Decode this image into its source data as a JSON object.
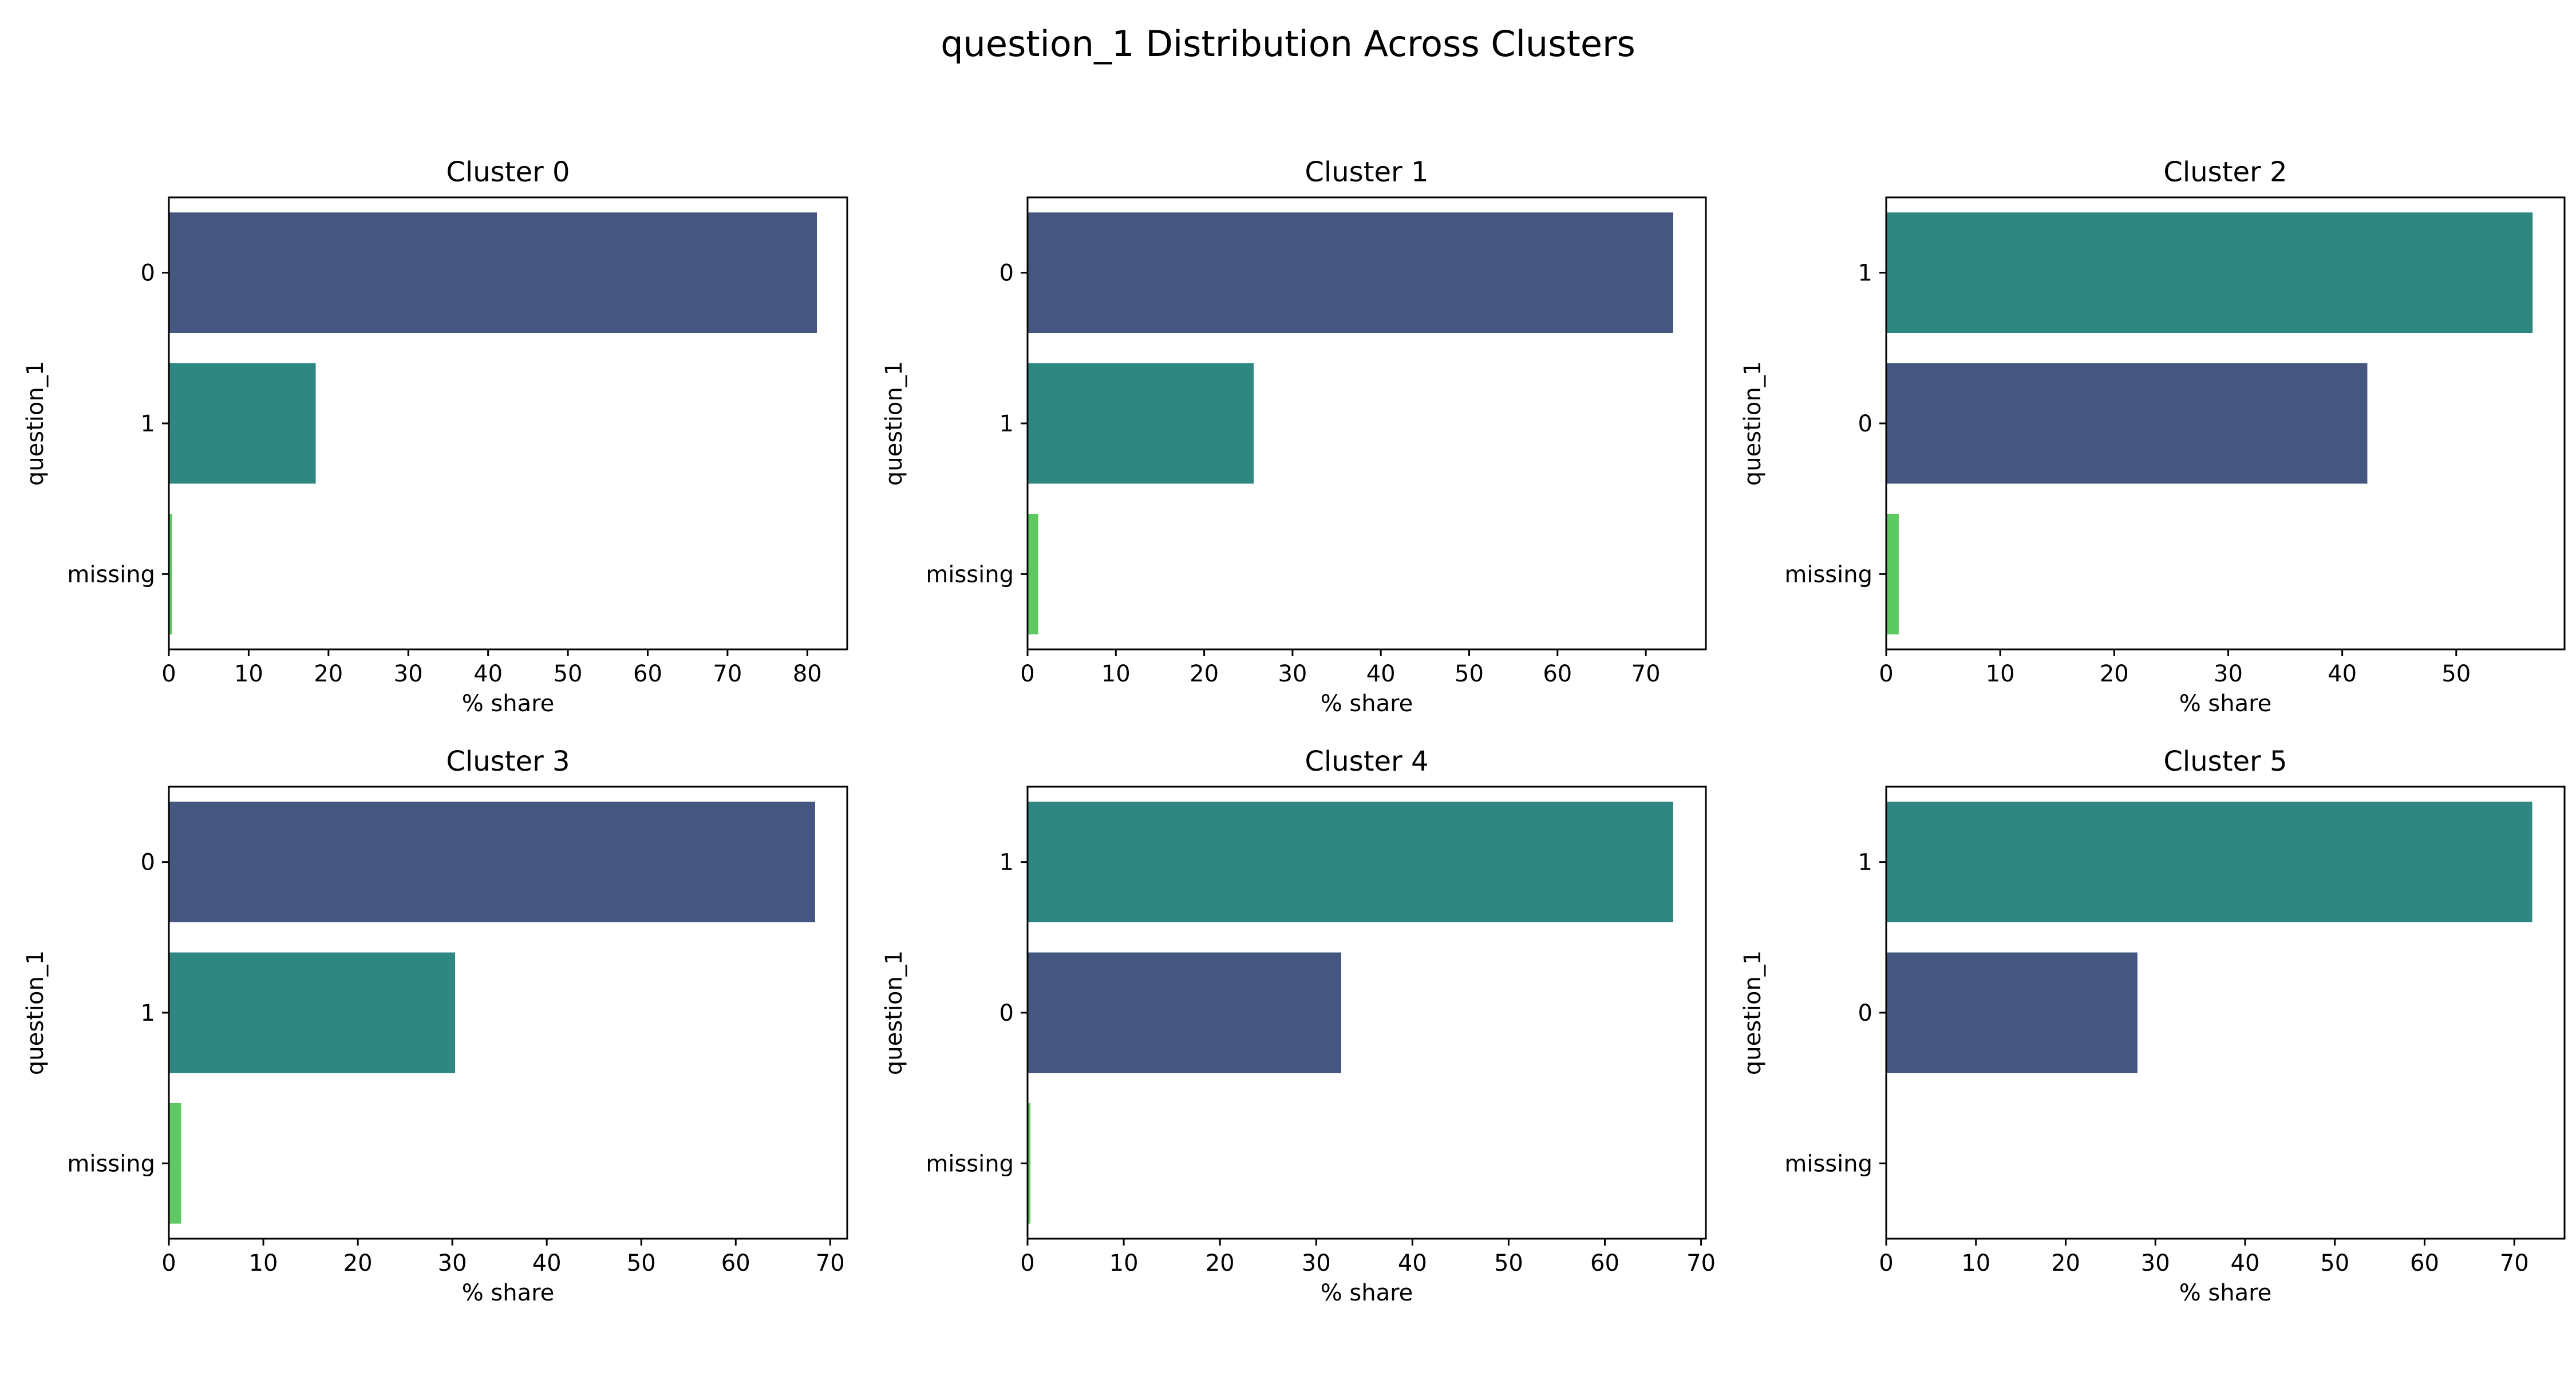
{
  "figure": {
    "title": "question_1 Distribution Across Clusters"
  },
  "colors": {
    "0": "#455681",
    "1": "#2e8780",
    "missing": "#5ec962"
  },
  "chart_data": [
    {
      "type": "bar",
      "orientation": "horizontal",
      "title": "Cluster 0",
      "xlabel": "% share",
      "ylabel": "question_1",
      "categories": [
        "0",
        "1",
        "missing"
      ],
      "values": [
        81.2,
        18.4,
        0.4
      ],
      "xlim": [
        0,
        85
      ],
      "xticks": [
        0,
        10,
        20,
        30,
        40,
        50,
        60,
        70,
        80
      ]
    },
    {
      "type": "bar",
      "orientation": "horizontal",
      "title": "Cluster 1",
      "xlabel": "% share",
      "ylabel": "question_1",
      "categories": [
        "0",
        "1",
        "missing"
      ],
      "values": [
        73.1,
        25.6,
        1.2
      ],
      "xlim": [
        0,
        76.8
      ],
      "xticks": [
        0,
        10,
        20,
        30,
        40,
        50,
        60,
        70
      ]
    },
    {
      "type": "bar",
      "orientation": "horizontal",
      "title": "Cluster 2",
      "xlabel": "% share",
      "ylabel": "question_1",
      "categories": [
        "1",
        "0",
        "missing"
      ],
      "values": [
        56.7,
        42.2,
        1.1
      ],
      "xlim": [
        0,
        59.5
      ],
      "xticks": [
        0,
        10,
        20,
        30,
        40,
        50
      ]
    },
    {
      "type": "bar",
      "orientation": "horizontal",
      "title": "Cluster 3",
      "xlabel": "% share",
      "ylabel": "question_1",
      "categories": [
        "0",
        "1",
        "missing"
      ],
      "values": [
        68.4,
        30.3,
        1.3
      ],
      "xlim": [
        0,
        71.8
      ],
      "xticks": [
        0,
        10,
        20,
        30,
        40,
        50,
        60,
        70
      ]
    },
    {
      "type": "bar",
      "orientation": "horizontal",
      "title": "Cluster 4",
      "xlabel": "% share",
      "ylabel": "question_1",
      "categories": [
        "1",
        "0",
        "missing"
      ],
      "values": [
        67.1,
        32.6,
        0.3
      ],
      "xlim": [
        0,
        70.5
      ],
      "xticks": [
        0,
        10,
        20,
        30,
        40,
        50,
        60,
        70
      ]
    },
    {
      "type": "bar",
      "orientation": "horizontal",
      "title": "Cluster 5",
      "xlabel": "% share",
      "ylabel": "question_1",
      "categories": [
        "1",
        "0",
        "missing"
      ],
      "values": [
        72.0,
        28.0,
        0.0
      ],
      "xlim": [
        0,
        75.6
      ],
      "xticks": [
        0,
        10,
        20,
        30,
        40,
        50,
        60,
        70
      ]
    }
  ]
}
